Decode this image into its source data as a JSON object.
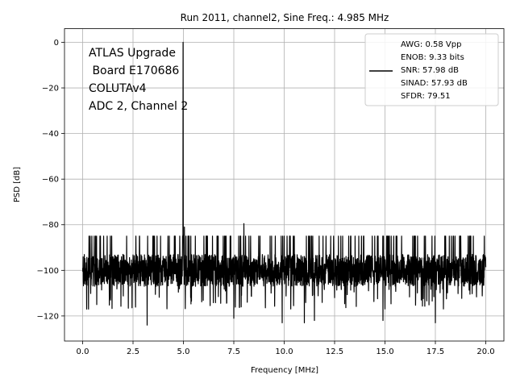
{
  "chart_data": {
    "type": "line",
    "title": "Run 2011, channel2, Sine Freq.: 4.985 MHz",
    "xlabel": "Frequency [MHz]",
    "ylabel": "PSD [dB]",
    "xlim": [
      -0.9,
      20.9
    ],
    "ylim": [
      -131,
      6
    ],
    "xticks": [
      0.0,
      2.5,
      5.0,
      7.5,
      10.0,
      12.5,
      15.0,
      17.5,
      20.0
    ],
    "xtick_labels": [
      "0.0",
      "2.5",
      "5.0",
      "7.5",
      "10.0",
      "12.5",
      "15.0",
      "17.5",
      "20.0"
    ],
    "yticks": [
      0,
      -20,
      -40,
      -60,
      -80,
      -100,
      -120
    ],
    "ytick_labels": [
      "0",
      "−20",
      "−40",
      "−60",
      "−80",
      "−100",
      "−120"
    ],
    "grid": true,
    "legend": {
      "placement": "top-right",
      "entries": [
        "AWG: 0.58 Vpp",
        "ENOB: 9.33 bits",
        "SNR: 57.98 dB",
        "SINAD: 57.93 dB",
        "SFDR: 79.51"
      ]
    },
    "annotation_lines": [
      "ATLAS Upgrade",
      " Board E170686",
      "COLUTAv4",
      "ADC 2, Channel 2"
    ],
    "series": [
      {
        "color": "#000000",
        "noise_floor_db": -100,
        "noise_range_db": [
          -124,
          -85
        ],
        "x_range": [
          0.0,
          20.0
        ],
        "peaks": [
          {
            "x": 4.985,
            "y": 0
          },
          {
            "x": 8.0,
            "y": -79.5
          },
          {
            "x": 5.05,
            "y": -81
          }
        ],
        "deep_dips": [
          {
            "x": 3.2,
            "y": -124
          },
          {
            "x": 7.5,
            "y": -121
          },
          {
            "x": 9.9,
            "y": -123
          },
          {
            "x": 11.0,
            "y": -123
          },
          {
            "x": 11.5,
            "y": -122
          },
          {
            "x": 14.9,
            "y": -122
          },
          {
            "x": 17.5,
            "y": -123
          },
          {
            "x": 0.2,
            "y": -117
          },
          {
            "x": 0.7,
            "y": -115
          }
        ]
      }
    ]
  }
}
